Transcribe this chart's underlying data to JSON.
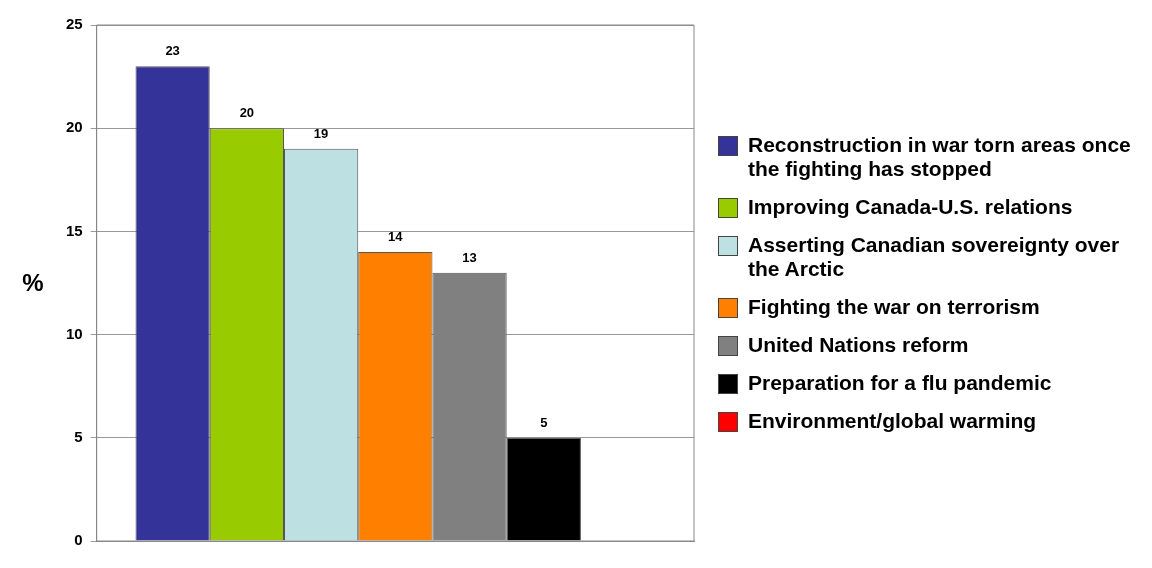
{
  "chart_data": {
    "type": "bar",
    "ylabel": "%",
    "categories": [
      null
    ],
    "series": [
      {
        "name": "Reconstruction in war torn areas once the fighting has stopped",
        "color": "#333399",
        "values": [
          23
        ]
      },
      {
        "name": "Improving Canada-U.S. relations",
        "color": "#99cc00",
        "values": [
          20
        ]
      },
      {
        "name": "Asserting Canadian sovereignty over the Arctic",
        "color": "#bde0e3",
        "values": [
          19
        ]
      },
      {
        "name": "Fighting the war on terrorism",
        "color": "#ff8000",
        "values": [
          14
        ]
      },
      {
        "name": "United Nations reform",
        "color": "#808080",
        "values": [
          13
        ]
      },
      {
        "name": "Preparation for a flu pandemic",
        "color": "#000000",
        "values": [
          5
        ]
      },
      {
        "name": "Environment/global warming",
        "color": "#ff0000",
        "values": [
          null
        ]
      }
    ],
    "ylim": [
      0,
      25
    ],
    "yticks": [
      0,
      5,
      10,
      15,
      20,
      25
    ],
    "grid": "y",
    "legend": "right",
    "data_labels": true
  }
}
